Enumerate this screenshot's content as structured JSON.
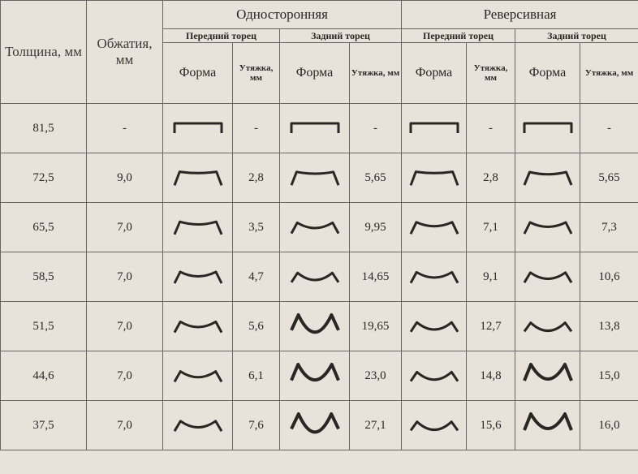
{
  "table": {
    "columns": {
      "thickness": "Толщина, мм",
      "reduction": "Обжатия, мм"
    },
    "groups": [
      {
        "label": "Односторонняя",
        "ends": [
          {
            "label": "Передний торец",
            "columns": [
              "Форма",
              "Утяжка, мм"
            ]
          },
          {
            "label": "Задний торец",
            "columns": [
              "Форма",
              "Утяжка, мм"
            ]
          }
        ]
      },
      {
        "label": "Реверсивная",
        "ends": [
          {
            "label": "Передний торец",
            "columns": [
              "Форма",
              "Утяжка, мм"
            ]
          },
          {
            "label": "Задний торец",
            "columns": [
              "Форма",
              "Утяжка, мм"
            ]
          }
        ]
      }
    ],
    "rows": [
      {
        "thickness": "81,5",
        "reduction": "-",
        "pulls": [
          "-",
          "-",
          "-",
          "-"
        ]
      },
      {
        "thickness": "72,5",
        "reduction": "9,0",
        "pulls": [
          "2,8",
          "5,65",
          "2,8",
          "5,65"
        ]
      },
      {
        "thickness": "65,5",
        "reduction": "7,0",
        "pulls": [
          "3,5",
          "9,95",
          "7,1",
          "7,3"
        ]
      },
      {
        "thickness": "58,5",
        "reduction": "7,0",
        "pulls": [
          "4,7",
          "14,65",
          "9,1",
          "10,6"
        ]
      },
      {
        "thickness": "51,5",
        "reduction": "7,0",
        "pulls": [
          "5,6",
          "19,65",
          "12,7",
          "13,8"
        ]
      },
      {
        "thickness": "44,6",
        "reduction": "7,0",
        "pulls": [
          "6,1",
          "23,0",
          "14,8",
          "15,0"
        ]
      },
      {
        "thickness": "37,5",
        "reduction": "7,0",
        "pulls": [
          "7,6",
          "27,1",
          "15,6",
          "16,0"
        ]
      }
    ]
  }
}
